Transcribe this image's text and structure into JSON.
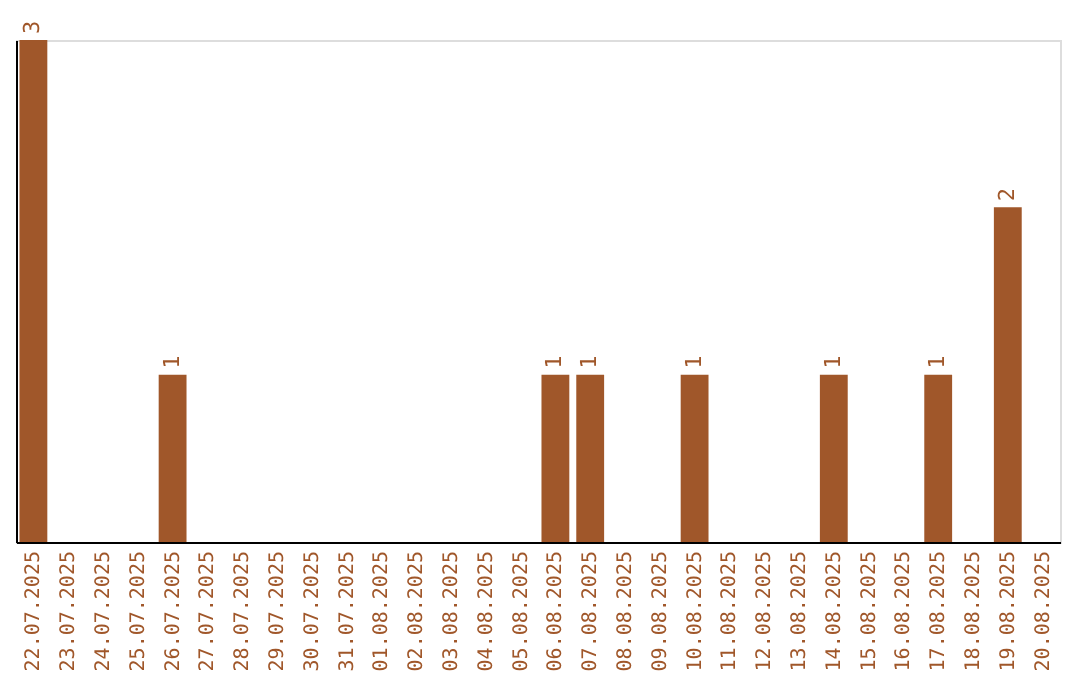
{
  "chart_data": {
    "type": "bar",
    "categories": [
      "22.07.2025",
      "23.07.2025",
      "24.07.2025",
      "25.07.2025",
      "26.07.2025",
      "27.07.2025",
      "28.07.2025",
      "29.07.2025",
      "30.07.2025",
      "31.07.2025",
      "01.08.2025",
      "02.08.2025",
      "03.08.2025",
      "04.08.2025",
      "05.08.2025",
      "06.08.2025",
      "07.08.2025",
      "08.08.2025",
      "09.08.2025",
      "10.08.2025",
      "11.08.2025",
      "12.08.2025",
      "13.08.2025",
      "14.08.2025",
      "15.08.2025",
      "16.08.2025",
      "17.08.2025",
      "18.08.2025",
      "19.08.2025",
      "20.08.2025"
    ],
    "values": [
      3,
      0,
      0,
      0,
      1,
      0,
      0,
      0,
      0,
      0,
      0,
      0,
      0,
      0,
      0,
      1,
      1,
      0,
      0,
      1,
      0,
      0,
      0,
      1,
      0,
      0,
      1,
      0,
      2,
      0
    ],
    "value_labels": [
      "3",
      null,
      null,
      null,
      "1",
      null,
      null,
      null,
      null,
      null,
      null,
      null,
      null,
      null,
      null,
      "1",
      "1",
      null,
      null,
      "1",
      null,
      null,
      null,
      "1",
      null,
      null,
      "1",
      null,
      "2",
      null
    ],
    "color": "#a0572a",
    "ylim": [
      0,
      3
    ],
    "tick_labels": "x",
    "grid": false
  }
}
